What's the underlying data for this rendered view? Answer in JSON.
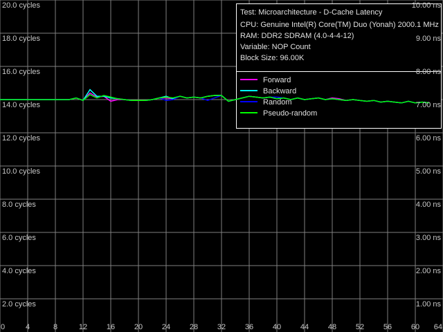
{
  "chart_data": {
    "type": "line",
    "info": [
      "Test: Microarchitecture - D-Cache Latency",
      "CPU: Genuine Intel(R) Core(TM) Duo (Yonah) 2000.1 MHz",
      "RAM: DDR2 SDRAM (4.0-4-4-12)",
      "Variable: NOP Count",
      "Block Size: 96.00K"
    ],
    "x": [
      0,
      1,
      2,
      3,
      4,
      5,
      6,
      7,
      8,
      9,
      10,
      11,
      12,
      13,
      14,
      15,
      16,
      17,
      18,
      19,
      20,
      21,
      22,
      23,
      24,
      25,
      26,
      27,
      28,
      29,
      30,
      31,
      32,
      33,
      34,
      35,
      36,
      37,
      38,
      39,
      40,
      41,
      42,
      43,
      44,
      45,
      46,
      47,
      48,
      49,
      50,
      51,
      52,
      53,
      54,
      55,
      56,
      57,
      58,
      59,
      60,
      61,
      62
    ],
    "xlim": [
      0,
      64
    ],
    "xticks": [
      0,
      4,
      8,
      12,
      16,
      20,
      24,
      28,
      32,
      36,
      40,
      44,
      48,
      52,
      56,
      60,
      64
    ],
    "ylim": [
      0,
      20
    ],
    "yticks": [
      {
        "value": 2,
        "label": "2.0 cycles"
      },
      {
        "value": 4,
        "label": "4.0 cycles"
      },
      {
        "value": 6,
        "label": "6.0 cycles"
      },
      {
        "value": 8,
        "label": "8.0 cycles"
      },
      {
        "value": 10,
        "label": "10.0 cycles"
      },
      {
        "value": 12,
        "label": "12.0 cycles"
      },
      {
        "value": 14,
        "label": "14.0 cycles"
      },
      {
        "value": 16,
        "label": "16.0 cycles"
      },
      {
        "value": 18,
        "label": "18.0 cycles"
      },
      {
        "value": 20,
        "label": "20.0 cycles"
      }
    ],
    "y2lim": [
      0,
      10
    ],
    "y2ticks": [
      {
        "value": 1,
        "label": "1.00 ns"
      },
      {
        "value": 2,
        "label": "2.00 ns"
      },
      {
        "value": 3,
        "label": "3.00 ns"
      },
      {
        "value": 4,
        "label": "4.00 ns"
      },
      {
        "value": 5,
        "label": "5.00 ns"
      },
      {
        "value": 6,
        "label": "6.00 ns"
      },
      {
        "value": 7,
        "label": "7.00 ns"
      },
      {
        "value": 8,
        "label": "8.00 ns"
      },
      {
        "value": 9,
        "label": "9.00 ns"
      },
      {
        "value": 10,
        "label": "10.00 ns"
      }
    ],
    "grid": true,
    "series": [
      {
        "name": "Forward",
        "color": "#ff00ff",
        "values": [
          14,
          14,
          14,
          14,
          14,
          14,
          14,
          14,
          14,
          14,
          14,
          14.1,
          13.95,
          14.4,
          14.15,
          14.2,
          13.9,
          14.0,
          14,
          13.95,
          13.95,
          13.95,
          14,
          14.1,
          14.1,
          14.05,
          14.2,
          14.1,
          14.15,
          14.1,
          14.2,
          14.25,
          14.25,
          13.9,
          14,
          14.1,
          14.2,
          14.15,
          14.1,
          14.15,
          14.05,
          14.1,
          14,
          14.1,
          14,
          14.05,
          14.1,
          14,
          14.1,
          14.05,
          13.95,
          14,
          13.95,
          13.9,
          13.95,
          13.85,
          13.9,
          13.85,
          13.8,
          13.9,
          13.8,
          13.85,
          13.8
        ]
      },
      {
        "name": "Backward",
        "color": "#00ffff",
        "values": [
          14,
          14,
          14,
          14,
          14,
          14,
          14,
          14,
          14,
          14,
          14,
          14.1,
          13.95,
          14.6,
          14.2,
          14.2,
          14.1,
          14.05,
          14,
          13.95,
          13.95,
          13.95,
          14,
          14.1,
          14.2,
          14.05,
          14.2,
          14.1,
          14.15,
          14.1,
          14.2,
          14.25,
          14.25,
          13.9,
          14,
          14.1,
          14.2,
          14.15,
          14.1,
          14.15,
          14.05,
          14.1,
          14,
          14.1,
          14,
          14.05,
          14.1,
          14,
          14.05,
          14,
          13.95,
          14,
          13.95,
          13.9,
          13.95,
          13.85,
          13.9,
          13.85,
          13.8,
          13.9,
          13.8,
          13.85,
          13.8
        ]
      },
      {
        "name": "Random",
        "color": "#0000ff",
        "values": [
          14,
          14,
          14,
          14,
          14,
          14,
          14,
          14,
          14,
          14,
          14,
          14.1,
          13.95,
          14.3,
          14.1,
          14.25,
          14.15,
          14.05,
          14,
          13.95,
          13.95,
          13.95,
          14,
          14.1,
          13.95,
          14.0,
          14.2,
          14.1,
          14.15,
          14.1,
          13.95,
          14.1,
          14.25,
          13.9,
          14,
          14.1,
          14.2,
          14.15,
          14.1,
          14.15,
          14.15,
          14.1,
          14,
          14.1,
          14,
          14.05,
          14.1,
          14,
          14.05,
          14,
          13.95,
          14,
          13.95,
          13.9,
          13.95,
          13.85,
          13.9,
          13.85,
          13.8,
          13.9,
          13.8,
          13.85,
          13.8
        ]
      },
      {
        "name": "Pseudo-random",
        "color": "#00ff00",
        "values": [
          14,
          14,
          14,
          14,
          14,
          14,
          14,
          14,
          14,
          14,
          14,
          14.1,
          13.95,
          14.3,
          14.1,
          14.25,
          14.15,
          14.05,
          14,
          13.95,
          13.95,
          13.95,
          14,
          14.1,
          14.15,
          14.1,
          14.2,
          14.1,
          14.15,
          14.1,
          14.2,
          14.25,
          14.25,
          13.9,
          14,
          14.1,
          14.2,
          14.15,
          14.1,
          14.15,
          14.05,
          14.1,
          14,
          14.1,
          14,
          14.05,
          14.1,
          14,
          14.05,
          14,
          13.95,
          14,
          13.95,
          13.9,
          13.95,
          13.85,
          13.9,
          13.85,
          13.8,
          13.9,
          13.8,
          13.85,
          13.8
        ]
      }
    ]
  }
}
